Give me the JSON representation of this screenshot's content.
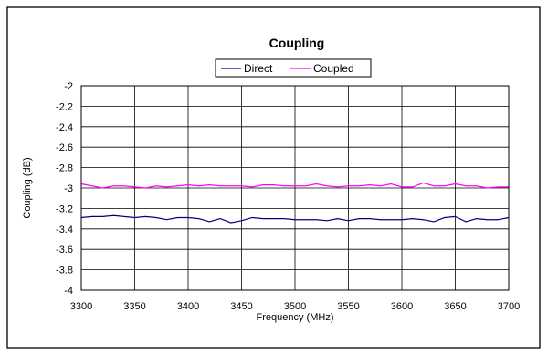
{
  "chart_data": {
    "type": "line",
    "title": "Coupling",
    "xlabel": "Frequency (MHz)",
    "ylabel": "Coupling (dB)",
    "xlim": [
      3300,
      3700
    ],
    "ylim": [
      -4,
      -2
    ],
    "x_ticks": [
      "3300",
      "3350",
      "3400",
      "3450",
      "3500",
      "3550",
      "3600",
      "3650",
      "3700"
    ],
    "y_ticks": [
      "-2",
      "-2.2",
      "-2.4",
      "-2.6",
      "-2.8",
      "-3",
      "-3.2",
      "-3.4",
      "-3.6",
      "-3.8",
      "-4"
    ],
    "grid": true,
    "legend_position": "top-center",
    "x": [
      3300,
      3310,
      3320,
      3330,
      3340,
      3350,
      3360,
      3370,
      3380,
      3390,
      3400,
      3410,
      3420,
      3430,
      3440,
      3450,
      3460,
      3470,
      3480,
      3490,
      3500,
      3510,
      3520,
      3530,
      3540,
      3550,
      3560,
      3570,
      3580,
      3590,
      3600,
      3610,
      3620,
      3630,
      3640,
      3650,
      3660,
      3670,
      3680,
      3690,
      3700
    ],
    "series": [
      {
        "name": "Direct",
        "color": "#000080",
        "values": [
          -3.29,
          -3.28,
          -3.28,
          -3.27,
          -3.28,
          -3.29,
          -3.28,
          -3.29,
          -3.31,
          -3.29,
          -3.29,
          -3.3,
          -3.33,
          -3.3,
          -3.34,
          -3.32,
          -3.29,
          -3.3,
          -3.3,
          -3.3,
          -3.31,
          -3.31,
          -3.31,
          -3.32,
          -3.3,
          -3.32,
          -3.3,
          -3.3,
          -3.31,
          -3.31,
          -3.31,
          -3.3,
          -3.31,
          -3.33,
          -3.29,
          -3.28,
          -3.33,
          -3.3,
          -3.31,
          -3.31,
          -3.29
        ]
      },
      {
        "name": "Coupled",
        "color": "#ff00ff",
        "values": [
          -2.96,
          -2.98,
          -3.0,
          -2.98,
          -2.98,
          -2.99,
          -3.0,
          -2.98,
          -2.99,
          -2.98,
          -2.97,
          -2.98,
          -2.97,
          -2.98,
          -2.98,
          -2.98,
          -2.99,
          -2.97,
          -2.97,
          -2.98,
          -2.98,
          -2.98,
          -2.96,
          -2.98,
          -2.99,
          -2.98,
          -2.98,
          -2.97,
          -2.98,
          -2.96,
          -2.99,
          -2.99,
          -2.95,
          -2.98,
          -2.98,
          -2.96,
          -2.98,
          -2.98,
          -3.0,
          -2.99,
          -2.99
        ]
      }
    ]
  },
  "colors": {
    "plot_background": "#ffffff",
    "grid": "#000000",
    "frame": "#000000"
  }
}
